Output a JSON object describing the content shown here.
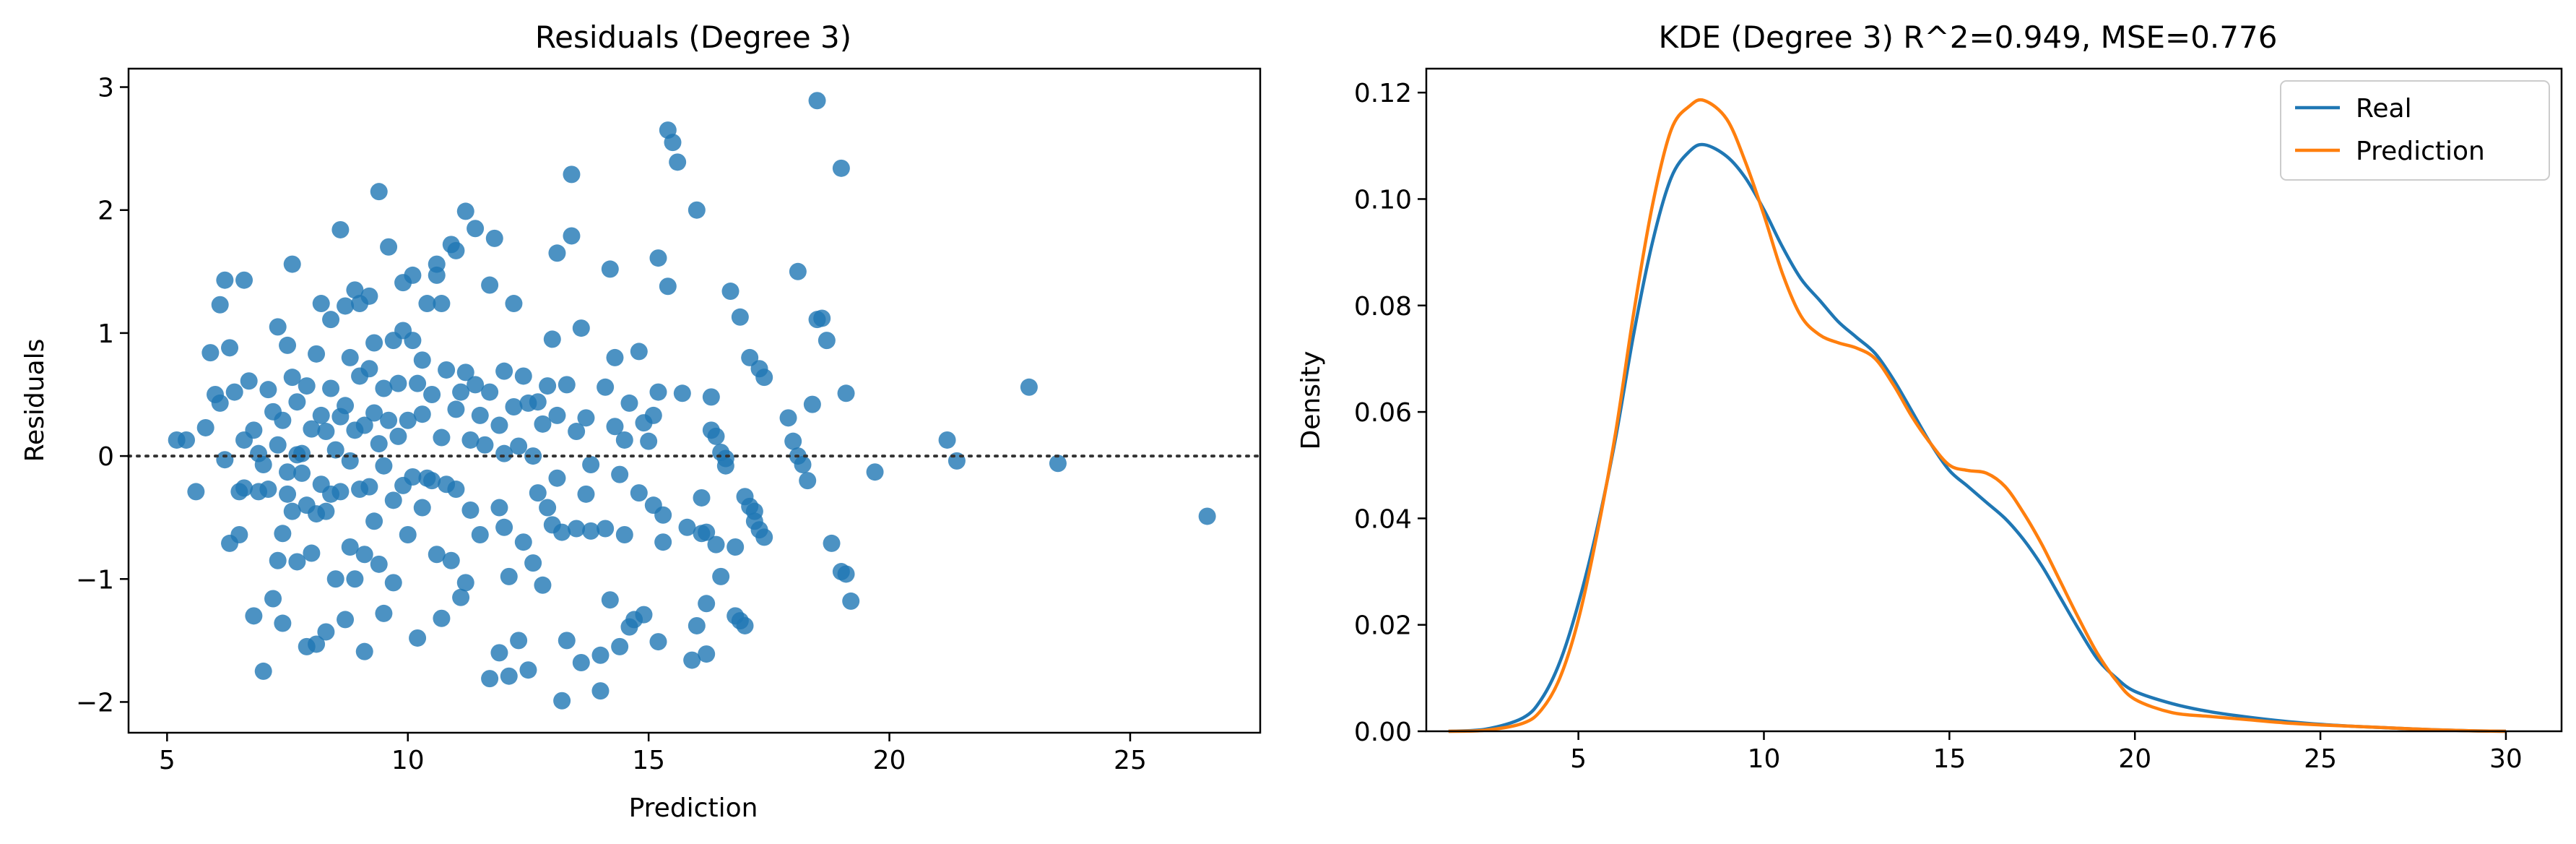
{
  "chart_data": [
    {
      "type": "scatter",
      "title": "Residuals (Degree 3)",
      "xlabel": "Prediction",
      "ylabel": "Residuals",
      "xlim": [
        4.2,
        27.7
      ],
      "ylim": [
        -2.25,
        3.15
      ],
      "xticks": [
        5,
        10,
        15,
        20,
        25
      ],
      "xtick_labels": [
        "5",
        "10",
        "15",
        "20",
        "25"
      ],
      "yticks": [
        -2,
        -1,
        0,
        1,
        2,
        3
      ],
      "ytick_labels": [
        "−2",
        "−1",
        "0",
        "1",
        "2",
        "3"
      ],
      "reference_line": 0,
      "color": "#1f77b4",
      "reference_color": "#333333",
      "points": [
        [
          5.2,
          0.13
        ],
        [
          5.4,
          0.13
        ],
        [
          5.6,
          -0.29
        ],
        [
          5.8,
          0.23
        ],
        [
          5.9,
          0.84
        ],
        [
          6.0,
          0.5
        ],
        [
          6.1,
          1.23
        ],
        [
          6.2,
          1.43
        ],
        [
          6.1,
          0.43
        ],
        [
          6.2,
          -0.03
        ],
        [
          6.3,
          -0.71
        ],
        [
          6.3,
          0.88
        ],
        [
          6.4,
          0.52
        ],
        [
          6.5,
          -0.64
        ],
        [
          6.5,
          -0.29
        ],
        [
          6.6,
          1.43
        ],
        [
          6.6,
          -0.26
        ],
        [
          6.6,
          0.13
        ],
        [
          6.7,
          0.61
        ],
        [
          6.8,
          -1.3
        ],
        [
          6.8,
          0.21
        ],
        [
          6.9,
          0.02
        ],
        [
          6.9,
          -0.29
        ],
        [
          7.0,
          -1.75
        ],
        [
          7.0,
          -0.07
        ],
        [
          7.1,
          0.54
        ],
        [
          7.1,
          -0.27
        ],
        [
          7.2,
          -1.16
        ],
        [
          7.2,
          0.36
        ],
        [
          7.3,
          1.05
        ],
        [
          7.3,
          -0.85
        ],
        [
          7.3,
          0.09
        ],
        [
          7.4,
          -1.36
        ],
        [
          7.4,
          -0.63
        ],
        [
          7.4,
          0.29
        ],
        [
          7.5,
          0.9
        ],
        [
          7.5,
          -0.31
        ],
        [
          7.5,
          -0.13
        ],
        [
          7.6,
          1.56
        ],
        [
          7.6,
          -0.45
        ],
        [
          7.6,
          0.64
        ],
        [
          7.7,
          0.01
        ],
        [
          7.7,
          -0.86
        ],
        [
          7.7,
          0.44
        ],
        [
          7.8,
          -0.14
        ],
        [
          7.8,
          0.02
        ],
        [
          7.9,
          -1.55
        ],
        [
          7.9,
          0.57
        ],
        [
          7.9,
          -0.4
        ],
        [
          8.0,
          0.22
        ],
        [
          8.0,
          -0.79
        ],
        [
          8.1,
          0.83
        ],
        [
          8.1,
          -1.53
        ],
        [
          8.1,
          -0.47
        ],
        [
          8.2,
          1.24
        ],
        [
          8.2,
          0.33
        ],
        [
          8.2,
          -0.23
        ],
        [
          8.3,
          -1.43
        ],
        [
          8.3,
          -0.45
        ],
        [
          8.3,
          0.2
        ],
        [
          8.4,
          -0.31
        ],
        [
          8.4,
          0.55
        ],
        [
          8.4,
          1.11
        ],
        [
          8.5,
          -1.0
        ],
        [
          8.5,
          0.05
        ],
        [
          8.6,
          1.84
        ],
        [
          8.6,
          -0.29
        ],
        [
          8.6,
          0.32
        ],
        [
          8.7,
          -1.33
        ],
        [
          8.7,
          1.22
        ],
        [
          8.7,
          0.41
        ],
        [
          8.8,
          -0.74
        ],
        [
          8.8,
          0.8
        ],
        [
          8.8,
          -0.04
        ],
        [
          8.9,
          1.35
        ],
        [
          8.9,
          0.21
        ],
        [
          8.9,
          -1.0
        ],
        [
          9.0,
          0.65
        ],
        [
          9.0,
          -0.27
        ],
        [
          9.0,
          1.24
        ],
        [
          9.1,
          -1.59
        ],
        [
          9.1,
          0.25
        ],
        [
          9.1,
          -0.8
        ],
        [
          9.2,
          1.3
        ],
        [
          9.2,
          0.71
        ],
        [
          9.2,
          -0.25
        ],
        [
          9.3,
          0.35
        ],
        [
          9.3,
          -0.53
        ],
        [
          9.3,
          0.92
        ],
        [
          9.4,
          2.15
        ],
        [
          9.4,
          -0.88
        ],
        [
          9.4,
          0.1
        ],
        [
          9.5,
          0.55
        ],
        [
          9.5,
          -1.28
        ],
        [
          9.5,
          -0.08
        ],
        [
          9.6,
          1.7
        ],
        [
          9.6,
          0.29
        ],
        [
          9.7,
          -0.36
        ],
        [
          9.7,
          0.94
        ],
        [
          9.7,
          -1.03
        ],
        [
          9.8,
          0.59
        ],
        [
          9.8,
          0.16
        ],
        [
          9.9,
          1.41
        ],
        [
          9.9,
          -0.24
        ],
        [
          9.9,
          1.02
        ],
        [
          10.0,
          0.29
        ],
        [
          10.0,
          -0.64
        ],
        [
          10.1,
          1.47
        ],
        [
          10.1,
          0.94
        ],
        [
          10.1,
          -0.17
        ],
        [
          10.2,
          -1.48
        ],
        [
          10.2,
          0.59
        ],
        [
          10.3,
          0.34
        ],
        [
          10.3,
          -0.42
        ],
        [
          10.3,
          0.78
        ],
        [
          10.4,
          -0.18
        ],
        [
          10.4,
          1.24
        ],
        [
          10.5,
          -0.2
        ],
        [
          10.5,
          0.5
        ],
        [
          10.6,
          1.56
        ],
        [
          10.6,
          -0.8
        ],
        [
          10.6,
          1.47
        ],
        [
          10.7,
          -1.32
        ],
        [
          10.7,
          0.15
        ],
        [
          10.7,
          1.24
        ],
        [
          10.8,
          0.7
        ],
        [
          10.8,
          -0.23
        ],
        [
          10.9,
          1.72
        ],
        [
          10.9,
          -0.85
        ],
        [
          11.0,
          1.67
        ],
        [
          11.0,
          0.38
        ],
        [
          11.0,
          -0.27
        ],
        [
          11.1,
          -1.15
        ],
        [
          11.1,
          0.52
        ],
        [
          11.2,
          1.99
        ],
        [
          11.2,
          0.68
        ],
        [
          11.2,
          -1.03
        ],
        [
          11.3,
          0.13
        ],
        [
          11.3,
          -0.44
        ],
        [
          11.4,
          1.85
        ],
        [
          11.4,
          0.58
        ],
        [
          11.5,
          -0.64
        ],
        [
          11.5,
          0.33
        ],
        [
          11.6,
          0.09
        ],
        [
          11.7,
          -1.81
        ],
        [
          11.7,
          1.39
        ],
        [
          11.7,
          0.52
        ],
        [
          11.8,
          1.77
        ],
        [
          11.9,
          -1.6
        ],
        [
          11.9,
          -0.42
        ],
        [
          11.9,
          0.25
        ],
        [
          12.0,
          0.69
        ],
        [
          12.0,
          -0.58
        ],
        [
          12.0,
          0.02
        ],
        [
          12.1,
          -1.79
        ],
        [
          12.1,
          -0.98
        ],
        [
          12.2,
          1.24
        ],
        [
          12.2,
          0.4
        ],
        [
          12.3,
          -1.5
        ],
        [
          12.3,
          0.08
        ],
        [
          12.4,
          0.65
        ],
        [
          12.4,
          -0.7
        ],
        [
          12.5,
          -1.74
        ],
        [
          12.5,
          0.43
        ],
        [
          12.6,
          -0.87
        ],
        [
          12.6,
          0.0
        ],
        [
          12.7,
          -0.3
        ],
        [
          12.7,
          0.44
        ],
        [
          12.8,
          -1.05
        ],
        [
          12.8,
          0.26
        ],
        [
          12.9,
          -0.42
        ],
        [
          12.9,
          0.57
        ],
        [
          13.0,
          -0.56
        ],
        [
          13.0,
          0.95
        ],
        [
          13.1,
          -0.18
        ],
        [
          13.1,
          1.65
        ],
        [
          13.1,
          0.33
        ],
        [
          13.2,
          -1.99
        ],
        [
          13.2,
          -0.62
        ],
        [
          13.3,
          0.58
        ],
        [
          13.3,
          -1.5
        ],
        [
          13.4,
          1.79
        ],
        [
          13.4,
          2.29
        ],
        [
          13.5,
          -0.59
        ],
        [
          13.5,
          0.2
        ],
        [
          13.6,
          -1.68
        ],
        [
          13.6,
          1.04
        ],
        [
          13.7,
          -0.31
        ],
        [
          13.7,
          0.31
        ],
        [
          13.8,
          -0.61
        ],
        [
          13.8,
          -0.07
        ],
        [
          14.0,
          -1.91
        ],
        [
          14.0,
          -1.62
        ],
        [
          14.1,
          0.56
        ],
        [
          14.1,
          -0.59
        ],
        [
          14.2,
          1.52
        ],
        [
          14.2,
          -1.17
        ],
        [
          14.3,
          0.8
        ],
        [
          14.3,
          0.24
        ],
        [
          14.4,
          -1.55
        ],
        [
          14.4,
          -0.15
        ],
        [
          14.5,
          0.13
        ],
        [
          14.5,
          -0.64
        ],
        [
          14.6,
          -1.39
        ],
        [
          14.6,
          0.43
        ],
        [
          14.7,
          -1.33
        ],
        [
          14.8,
          -0.3
        ],
        [
          14.8,
          0.85
        ],
        [
          14.9,
          -1.29
        ],
        [
          14.9,
          0.27
        ],
        [
          15.0,
          0.12
        ],
        [
          15.1,
          -0.4
        ],
        [
          15.1,
          0.33
        ],
        [
          15.2,
          1.61
        ],
        [
          15.2,
          -1.51
        ],
        [
          15.2,
          0.52
        ],
        [
          15.3,
          -0.48
        ],
        [
          15.3,
          -0.7
        ],
        [
          15.4,
          1.38
        ],
        [
          15.4,
          2.65
        ],
        [
          15.5,
          2.55
        ],
        [
          15.6,
          2.39
        ],
        [
          15.7,
          0.51
        ],
        [
          15.8,
          -0.58
        ],
        [
          15.9,
          -1.66
        ],
        [
          16.0,
          -1.38
        ],
        [
          16.0,
          2.0
        ],
        [
          16.1,
          -0.63
        ],
        [
          16.1,
          -0.34
        ],
        [
          16.2,
          -1.61
        ],
        [
          16.2,
          -0.62
        ],
        [
          16.2,
          -1.2
        ],
        [
          16.3,
          0.48
        ],
        [
          16.3,
          0.21
        ],
        [
          16.4,
          -0.72
        ],
        [
          16.4,
          0.16
        ],
        [
          16.5,
          -0.98
        ],
        [
          16.5,
          0.03
        ],
        [
          16.6,
          -0.08
        ],
        [
          16.6,
          -0.02
        ],
        [
          16.7,
          1.34
        ],
        [
          16.8,
          -0.74
        ],
        [
          16.8,
          -1.3
        ],
        [
          16.9,
          -1.34
        ],
        [
          16.9,
          1.13
        ],
        [
          17.0,
          -1.38
        ],
        [
          17.0,
          -0.33
        ],
        [
          17.1,
          -0.41
        ],
        [
          17.1,
          0.8
        ],
        [
          17.2,
          -0.45
        ],
        [
          17.2,
          -0.53
        ],
        [
          17.3,
          0.71
        ],
        [
          17.3,
          -0.6
        ],
        [
          17.4,
          -0.66
        ],
        [
          17.4,
          0.64
        ],
        [
          17.9,
          0.31
        ],
        [
          18.0,
          0.12
        ],
        [
          18.1,
          1.5
        ],
        [
          18.1,
          0.0
        ],
        [
          18.2,
          -0.07
        ],
        [
          18.3,
          -0.2
        ],
        [
          18.4,
          0.42
        ],
        [
          18.5,
          2.89
        ],
        [
          18.5,
          1.11
        ],
        [
          18.6,
          1.12
        ],
        [
          18.7,
          0.94
        ],
        [
          18.8,
          -0.71
        ],
        [
          19.0,
          -0.94
        ],
        [
          19.0,
          2.34
        ],
        [
          19.1,
          0.51
        ],
        [
          19.1,
          -0.96
        ],
        [
          19.2,
          -1.18
        ],
        [
          19.7,
          -0.13
        ],
        [
          21.2,
          0.13
        ],
        [
          21.4,
          -0.04
        ],
        [
          22.9,
          0.56
        ],
        [
          23.5,
          -0.06
        ],
        [
          26.6,
          -0.49
        ]
      ]
    },
    {
      "type": "line",
      "title": "KDE (Degree 3) R^2=0.949, MSE=0.776",
      "xlabel": "",
      "ylabel": "Density",
      "xlim": [
        0.9,
        31.5
      ],
      "ylim": [
        0,
        0.1245
      ],
      "xticks": [
        5,
        10,
        15,
        20,
        25,
        30
      ],
      "xtick_labels": [
        "5",
        "10",
        "15",
        "20",
        "25",
        "30"
      ],
      "yticks": [
        0,
        0.02,
        0.04,
        0.06,
        0.08,
        0.1,
        0.12
      ],
      "ytick_labels": [
        "0.00",
        "0.02",
        "0.04",
        "0.06",
        "0.08",
        "0.10",
        "0.12"
      ],
      "legend_position": "top-right",
      "series": [
        {
          "name": "Real",
          "color": "#1f77b4",
          "x": [
            1.5,
            2.5,
            3.5,
            4.0,
            4.5,
            5.0,
            5.5,
            6.0,
            6.5,
            7.0,
            7.5,
            8.0,
            8.4,
            9.0,
            9.5,
            10.0,
            10.5,
            11.0,
            11.5,
            12.0,
            12.5,
            13.0,
            13.5,
            14.0,
            14.5,
            15.0,
            15.5,
            16.0,
            16.5,
            17.0,
            17.5,
            18.0,
            18.5,
            19.0,
            19.5,
            20.0,
            21.0,
            22.0,
            23.0,
            24.0,
            25.0,
            26.0,
            27.0,
            28.0,
            29.0,
            30.0
          ],
          "values": [
            0.0,
            0.0004,
            0.0025,
            0.006,
            0.013,
            0.024,
            0.038,
            0.055,
            0.075,
            0.092,
            0.104,
            0.109,
            0.1102,
            0.108,
            0.104,
            0.098,
            0.091,
            0.085,
            0.081,
            0.077,
            0.074,
            0.071,
            0.066,
            0.06,
            0.054,
            0.049,
            0.046,
            0.043,
            0.04,
            0.036,
            0.031,
            0.025,
            0.019,
            0.0135,
            0.01,
            0.0075,
            0.0052,
            0.0037,
            0.0027,
            0.0019,
            0.0013,
            0.0009,
            0.0006,
            0.0003,
            0.0001,
            0.0
          ]
        },
        {
          "name": "Prediction",
          "color": "#ff7f0e",
          "x": [
            1.5,
            2.5,
            3.5,
            4.0,
            4.5,
            5.0,
            5.5,
            6.0,
            6.5,
            7.0,
            7.5,
            8.0,
            8.4,
            9.0,
            9.5,
            10.0,
            10.5,
            11.0,
            11.5,
            12.0,
            12.5,
            13.0,
            13.5,
            14.0,
            14.5,
            15.0,
            15.5,
            16.0,
            16.5,
            17.0,
            17.5,
            18.0,
            18.5,
            19.0,
            19.5,
            20.0,
            21.0,
            22.0,
            23.0,
            24.0,
            25.0,
            26.0,
            27.0,
            28.0,
            29.0,
            30.0
          ],
          "values": [
            0.0,
            0.0002,
            0.0015,
            0.004,
            0.01,
            0.021,
            0.037,
            0.056,
            0.079,
            0.099,
            0.113,
            0.1175,
            0.1185,
            0.115,
            0.107,
            0.097,
            0.086,
            0.078,
            0.0745,
            0.073,
            0.072,
            0.07,
            0.065,
            0.059,
            0.054,
            0.05,
            0.049,
            0.0485,
            0.046,
            0.041,
            0.035,
            0.028,
            0.021,
            0.0145,
            0.0095,
            0.006,
            0.0035,
            0.0028,
            0.0022,
            0.0016,
            0.0012,
            0.0009,
            0.0006,
            0.0003,
            0.0001,
            0.0
          ]
        }
      ]
    }
  ]
}
